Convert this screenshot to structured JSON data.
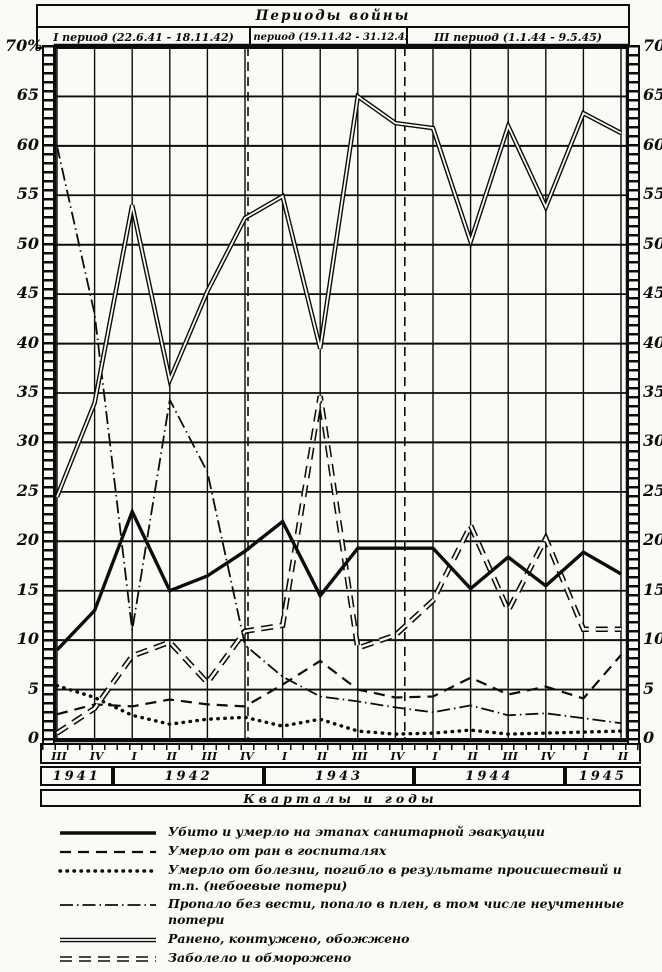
{
  "header": {
    "title": "Периоды войны",
    "periods": [
      {
        "label": "I период (22.6.41 - 18.11.42)"
      },
      {
        "label": "II период (19.11.42 - 31.12.43)"
      },
      {
        "label": "III период (1.1.44 - 9.5.45)"
      }
    ]
  },
  "y_axis": {
    "left_top_label": "70%",
    "right_top_label": "70°",
    "tick_step": 5,
    "max": 70,
    "min": 0
  },
  "x_axis": {
    "quarter_labels": [
      "III",
      "IV",
      "I",
      "II",
      "III",
      "IV",
      "I",
      "II",
      "III",
      "IV",
      "I",
      "II",
      "III",
      "IV",
      "I",
      "II"
    ],
    "years": [
      {
        "label": "1941",
        "quarters": 2
      },
      {
        "label": "1942",
        "quarters": 4
      },
      {
        "label": "1943",
        "quarters": 4
      },
      {
        "label": "1944",
        "quarters": 4
      },
      {
        "label": "1945",
        "quarters": 2
      }
    ],
    "caption": "Кварталы  и  годы"
  },
  "chart_data": {
    "type": "line",
    "title": "Периоды войны",
    "xlabel": "Кварталы и годы",
    "ylabel": "%",
    "ylim": [
      0,
      70
    ],
    "grid": true,
    "legend_position": "bottom",
    "categories": [
      "III-1941",
      "IV-1941",
      "I-1942",
      "II-1942",
      "III-1942",
      "IV-1942",
      "I-1943",
      "II-1943",
      "III-1943",
      "IV-1943",
      "I-1944",
      "II-1944",
      "III-1944",
      "IV-1944",
      "I-1945",
      "II-1945"
    ],
    "period_separator_positions": [
      5.08,
      9.25
    ],
    "series": [
      {
        "key": "killed",
        "style": "solid-thick",
        "name": "Убито и умерло на этапах санитарной эвакуации",
        "values": [
          9,
          13,
          23,
          15,
          16.5,
          19,
          22,
          14.5,
          19.3,
          19.3,
          19.3,
          15.2,
          18.4,
          15.5,
          18.9,
          16.7
        ]
      },
      {
        "key": "died-of-wounds",
        "style": "dashed",
        "name": "Умерло от ран в госпиталях",
        "values": [
          2.5,
          3.5,
          3.3,
          4,
          3.5,
          3.3,
          5.5,
          7.9,
          5,
          4.2,
          4.3,
          6.2,
          4.5,
          5.3,
          4.1,
          8.5
        ]
      },
      {
        "key": "died-of-disease",
        "style": "dotted",
        "name": "Умерло от болезни, погибло в результате происшествий и т.п. (небоевые потери)",
        "values": [
          5.4,
          4.2,
          2.4,
          1.5,
          2,
          2.2,
          1.3,
          2,
          0.8,
          0.5,
          0.6,
          0.9,
          0.5,
          0.6,
          0.7,
          0.8
        ]
      },
      {
        "key": "missing",
        "style": "dashdot",
        "name": "Пропало без вести, попало в плен, в том числе неучтенные потери",
        "values": [
          60,
          43,
          11,
          34.3,
          27,
          9.5,
          6.3,
          4.3,
          3.8,
          3.2,
          2.7,
          3.4,
          2.4,
          2.6,
          2.1,
          1.6
        ]
      },
      {
        "key": "wounded",
        "style": "double",
        "name": "Ранено, контужено, обожжено",
        "values": [
          24.5,
          34,
          54,
          36.3,
          45.3,
          52.7,
          54.9,
          39.5,
          65,
          62.3,
          61.8,
          50.3,
          62,
          53.8,
          63.3,
          61.3
        ]
      },
      {
        "key": "sick",
        "style": "double-dash",
        "name": "Заболело и обморожено",
        "values": [
          0.6,
          3.1,
          8.4,
          9.8,
          5.7,
          10.9,
          11.5,
          34.7,
          9.2,
          10.5,
          14,
          21.6,
          13,
          20.3,
          11.1,
          11.1
        ]
      }
    ]
  },
  "legend": [
    {
      "style": "solid-thick",
      "label": "Убито и умерло на этапах санитарной эвакуации"
    },
    {
      "style": "dashed",
      "label": "Умерло от ран в госпиталях"
    },
    {
      "style": "dotted",
      "label": "Умерло от болезни, погибло в результате происшествий и т.п. (небоевые потери)"
    },
    {
      "style": "dashdot",
      "label": "Пропало без вести, попало в плен, в том числе неучтенные потери"
    },
    {
      "style": "double",
      "label": "Ранено, контужено, обожжено"
    },
    {
      "style": "double-dash",
      "label": "Заболело и обморожено"
    }
  ],
  "colors": {
    "ink": "#0c0c0c",
    "paper": "#fbfaf7"
  }
}
